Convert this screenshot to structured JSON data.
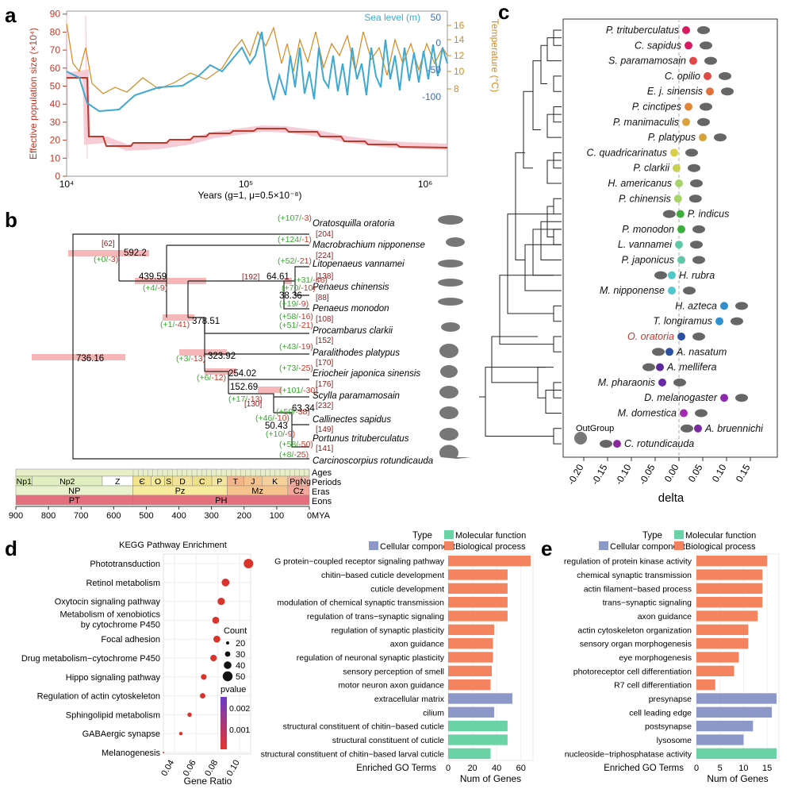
{
  "panels": {
    "a": "a",
    "b": "b",
    "c": "c",
    "d": "d",
    "e": "e"
  },
  "colors": {
    "red": "#c0392b",
    "blue": "#3fa9cf",
    "orange": "#d4891e",
    "bar_orange": "#f4845f",
    "bar_blue": "#8b98c8",
    "bar_green": "#6ad3a5",
    "green": "#3ca635"
  },
  "panel_a": {
    "y_label": "Effective population size (×10⁴)",
    "y_ticks": [
      "0",
      "10",
      "20",
      "30",
      "40",
      "50",
      "60",
      "70",
      "80",
      "90"
    ],
    "x_label": "Years (g=1, μ=0.5×10⁻⁸)",
    "x_ticks": [
      "10⁴",
      "10⁵",
      "10⁶"
    ],
    "sea_label": "Sea level (m)",
    "sea_ticks": [
      "50",
      "0",
      "-50",
      "-100"
    ],
    "temp_label": "Temperature (°C)",
    "temp_ticks": [
      "16",
      "14",
      "12",
      "10",
      "8"
    ]
  },
  "panel_b": {
    "taxa": [
      "Oratosquilla oratoria",
      "Macrobrachium nipponense",
      "Litopenaeus vannamei",
      "Penaeus chinensis",
      "Penaeus monodon",
      "Procambarus clarkii",
      "Paralithodes platypus",
      "Eriocheir japonica sinensis",
      "Scylla paramamosain",
      "Callinectes sapidus",
      "Portunus trituberculatus",
      "Carcinoscorpius rotundicauda"
    ],
    "gains": [
      "(+107/",
      "(+124/",
      "(+52/",
      "(+31/",
      "(+19/",
      "(+58/",
      "(+51/",
      "(+43/",
      "(+73/",
      "(+101/",
      "(+59/",
      "(+58/",
      "(+8/",
      "(+0/",
      "(+4/",
      "(+70/",
      "(+1/",
      "(+3/",
      "(+6/",
      "(+17/",
      "(+46/",
      "(+10/"
    ],
    "losses": [
      "-3)",
      "-1)",
      "-21)",
      "-46)",
      "-9)",
      "-16)",
      "-21)",
      "-19)",
      "-25)",
      "-30)",
      "-38)",
      "-50)",
      "-25)",
      "-3)",
      "-9)",
      "-10)",
      "-41)",
      "-13)",
      "-12)",
      "-13)",
      "-10)",
      "-9)"
    ],
    "counts": [
      "[204]",
      "[224]",
      "[138]",
      "[88]",
      "[108]",
      "[152]",
      "[170]",
      "[176]",
      "[232]",
      "[149]",
      "[141]",
      "[62]",
      "[192]",
      "[130]"
    ],
    "node_ages": [
      "736.16",
      "592.2",
      "439.59",
      "378.51",
      "323.92",
      "254.02",
      "152.69",
      "64.61",
      "38.36",
      "63.34",
      "50.43"
    ],
    "timescale": {
      "ages_label": "Ages",
      "periods_label": "Periods",
      "eras_label": "Eras",
      "eons_label": "Eons",
      "mya_label": "MYA",
      "periods": [
        "Np1",
        "Np2",
        "Z",
        "Є",
        "O",
        "S",
        "D",
        "C",
        "P",
        "T",
        "J",
        "K",
        "Pg",
        "Ng"
      ],
      "eras": [
        "NP",
        "Pz",
        "Mz",
        "Cz"
      ],
      "eons": [
        "PT",
        "PH"
      ],
      "axis": [
        "900",
        "800",
        "700",
        "600",
        "500",
        "400",
        "300",
        "200",
        "100",
        "0"
      ]
    }
  },
  "panel_c": {
    "species": [
      "P. trituberculatus",
      "C. sapidus",
      "S. paramamosain",
      "C. opilio",
      "E. j. sinensis",
      "P. cinctipes",
      "P. manimaculis",
      "P. platypus",
      "C. quadricarinatus",
      "P. clarkii",
      "H. americanus",
      "P. chinensis",
      "P. indicus",
      "P. monodon",
      "L. vannamei",
      "P. japonicus",
      "H. rubra",
      "M. nipponense",
      "H. azteca",
      "T. longiramus",
      "O. oratoria",
      "A. nasatum",
      "A. mellifera",
      "M. pharaonis",
      "D. melanogaster",
      "M. domestica",
      "A. bruennichi",
      "C. rotundicauda"
    ],
    "deltas": [
      0.015,
      0.02,
      0.03,
      0.06,
      0.065,
      0.02,
      0.015,
      0.05,
      -0.01,
      -0.005,
      0,
      -0.002,
      0.003,
      0.005,
      0,
      0.005,
      -0.015,
      -0.015,
      0.095,
      0.085,
      0.005,
      -0.02,
      -0.04,
      -0.035,
      0.095,
      0.01,
      0.04,
      -0.13
    ],
    "outgroup": "OutGroup",
    "x_label": "delta",
    "x_ticks": [
      "-0.20",
      "-0.15",
      "-0.10",
      "-0.05",
      "0.00",
      "0.05",
      "0.10",
      "0.15"
    ]
  },
  "panel_d_kegg": {
    "title": "KEGG Pathway Enrichment",
    "x_label": "Gene Ratio",
    "x_ticks": [
      "0.04",
      "0.06",
      "0.08",
      "0.10"
    ],
    "legend_count_title": "Count",
    "legend_counts": [
      "20",
      "30",
      "40",
      "50"
    ],
    "legend_p_title": "pvalue",
    "legend_p_ticks": [
      "0.002",
      "0.001"
    ],
    "chart_data": {
      "type": "scatter",
      "title": "KEGG Pathway Enrichment",
      "categories": [
        "Phototransduction",
        "Retinol metabolism",
        "Oxytocin signaling pathway",
        "Metabolism of xenobiotics|by cytochrome P450",
        "Focal adhesion",
        "Drug metabolism−cytochrome P450",
        "Hippo signaling pathway",
        "Regulation of actin cytoskeleton",
        "Sphingolipid metabolism",
        "GABAergic synapse",
        "Melanogenesis"
      ],
      "gene_ratio": [
        0.108,
        0.087,
        0.083,
        0.078,
        0.079,
        0.076,
        0.067,
        0.066,
        0.054,
        0.046,
        0.03
      ],
      "count": [
        52,
        44,
        42,
        40,
        40,
        38,
        34,
        33,
        28,
        24,
        15
      ],
      "xlim": [
        0.03,
        0.11
      ]
    }
  },
  "panel_d_go": {
    "legend_type": "Type",
    "legend_items": [
      "Molecular function",
      "Cellular component",
      "Biological process"
    ],
    "y_label": "Enriched GO Terms",
    "x_label": "Num of Genes",
    "x_ticks": [
      "0",
      "20",
      "40",
      "60"
    ],
    "chart_data": {
      "type": "bar",
      "categories": [
        "G protein−coupled receptor signaling pathway",
        "chitin−based cuticle development",
        "cuticle development",
        "modulation of chemical synaptic transmission",
        "regulation of trans−synaptic signaling",
        "regulation of synaptic plasticity",
        "axon guidance",
        "regulation of neuronal synaptic plasticity",
        "sensory perception of smell",
        "motor neuron axon guidance",
        "extracellular matrix",
        "cilium",
        "structural constituent of chitin−based cuticle",
        "structural constituent of cuticle",
        "structural constituent of chitin−based larval cuticle"
      ],
      "values": [
        68,
        49,
        49,
        49,
        49,
        38,
        37,
        37,
        36,
        35,
        53,
        38,
        49,
        49,
        35
      ],
      "types": [
        "BP",
        "BP",
        "BP",
        "BP",
        "BP",
        "BP",
        "BP",
        "BP",
        "BP",
        "BP",
        "CC",
        "CC",
        "MF",
        "MF",
        "MF"
      ],
      "xlim": [
        0,
        70
      ]
    }
  },
  "panel_e": {
    "legend_type": "Type",
    "legend_items": [
      "Molecular function",
      "Cellular component",
      "Biological process"
    ],
    "y_label": "Enriched GO Terms",
    "x_label": "Num of Genes",
    "x_ticks": [
      "0",
      "5",
      "10",
      "15"
    ],
    "chart_data": {
      "type": "bar",
      "categories": [
        "regulation of protein kinase activity",
        "chemical synaptic transmission",
        "actin filament−based process",
        "trans−synaptic signaling",
        "axon guidance",
        "actin cytoskeleton organization",
        "sensory organ morphogenesis",
        "eye morphogenesis",
        "photoreceptor cell differentiation",
        "R7 cell differentiation",
        "presynapse",
        "cell leading edge",
        "postsynapse",
        "lysosome",
        "nucleoside−triphosphatase activity"
      ],
      "values": [
        15,
        14,
        14,
        14,
        13,
        11,
        11,
        9,
        8,
        4,
        17,
        16,
        12,
        10,
        17
      ],
      "types": [
        "BP",
        "BP",
        "BP",
        "BP",
        "BP",
        "BP",
        "BP",
        "BP",
        "BP",
        "BP",
        "CC",
        "CC",
        "CC",
        "CC",
        "MF"
      ],
      "xlim": [
        0,
        17.5
      ]
    }
  }
}
